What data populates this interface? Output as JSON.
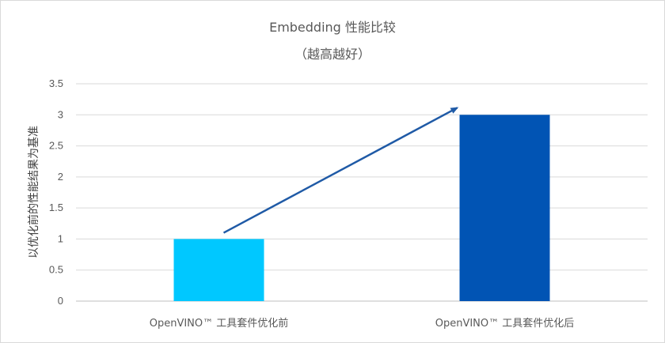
{
  "chart_data": {
    "type": "bar",
    "title": "Embedding 性能比较",
    "subtitle": "（越高越好）",
    "ylabel": "以优化前的性能结果为基准",
    "xlabel": "",
    "categories": [
      "OpenVINO™ 工具套件优化前",
      "OpenVINO™ 工具套件优化后"
    ],
    "values": [
      1,
      3
    ],
    "colors": [
      "#00c8ff",
      "#0154b4"
    ],
    "ylim": [
      0,
      3.5
    ],
    "yticks": [
      "0",
      "0.5",
      "1",
      "1.5",
      "2",
      "2.5",
      "3",
      "3.5"
    ],
    "grid": true,
    "legend": "none",
    "annotation": {
      "type": "arrow",
      "from": {
        "category": 0,
        "value": 1.1
      },
      "to": {
        "category": 1,
        "value": 3.1
      },
      "color": "#1f5aa6"
    }
  }
}
